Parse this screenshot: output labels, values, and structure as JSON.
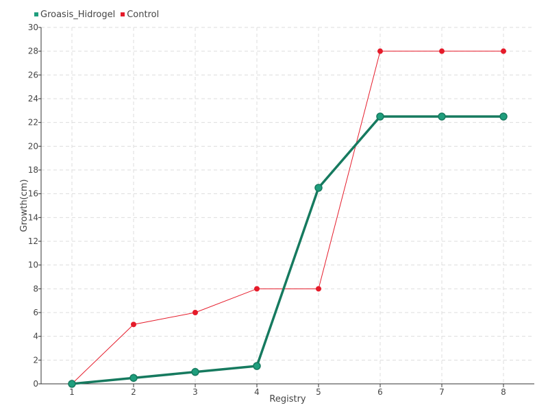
{
  "colors": {
    "groasis": "#1f9e7d",
    "groasis_marker_stroke": "#167a5f",
    "control": "#e51b2a",
    "grid": "#dddddd",
    "axis": "#333333",
    "text": "#444444"
  },
  "chart_data": {
    "type": "line",
    "title": "",
    "xlabel": "Registry",
    "ylabel": "Growth(cm)",
    "categories": [
      "1",
      "2",
      "3",
      "4",
      "5",
      "6",
      "7",
      "8"
    ],
    "x": [
      1,
      2,
      3,
      4,
      5,
      6,
      7,
      8
    ],
    "xlim": [
      0.5,
      8.5
    ],
    "ylim": [
      0,
      30
    ],
    "yticks": [
      0,
      2,
      4,
      6,
      8,
      10,
      12,
      14,
      16,
      18,
      20,
      22,
      24,
      26,
      28,
      30
    ],
    "grid": true,
    "legend_position": "top-left",
    "series": [
      {
        "name": "Groasis_Hidrogel",
        "values": [
          0,
          0.5,
          1.0,
          1.5,
          16.5,
          22.5,
          22.5,
          22.5
        ]
      },
      {
        "name": "Control",
        "values": [
          0,
          5,
          6,
          8,
          8,
          28,
          28,
          28
        ]
      }
    ]
  }
}
